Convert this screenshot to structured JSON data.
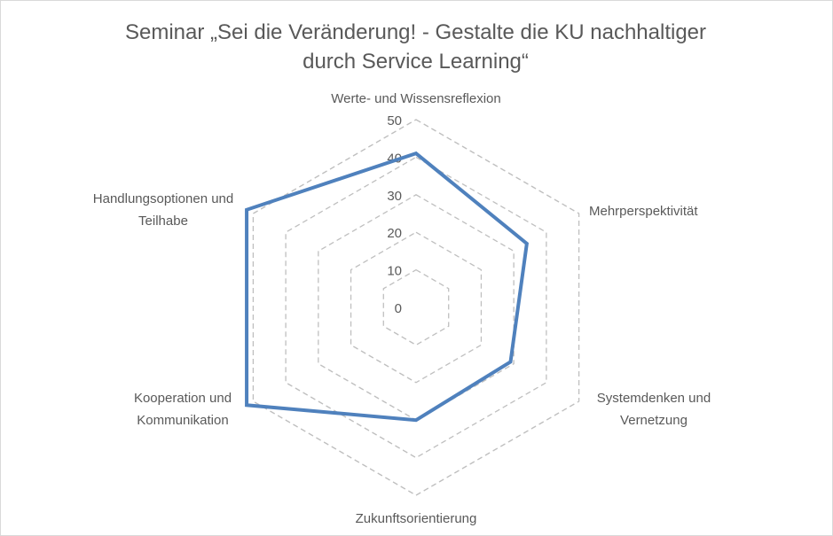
{
  "chart_data": {
    "type": "radar",
    "title_lines": [
      "Seminar „Sei die Veränderung! - Gestalte die KU nachhaltiger",
      "durch Service Learning“"
    ],
    "axes": [
      {
        "label_lines": [
          "Werte- und Wissensreflexion"
        ]
      },
      {
        "label_lines": [
          "Mehrperspektivität"
        ]
      },
      {
        "label_lines": [
          "Systemdenken und",
          "Vernetzung"
        ]
      },
      {
        "label_lines": [
          "Zukunftsorientierung"
        ]
      },
      {
        "label_lines": [
          "Kooperation und",
          "Kommunikation"
        ]
      },
      {
        "label_lines": [
          "Handlungsoptionen und",
          "Teilhabe"
        ]
      }
    ],
    "ticks": [
      "0",
      "10",
      "20",
      "30",
      "40",
      "50"
    ],
    "tick_values": [
      0,
      10,
      20,
      30,
      40,
      50
    ],
    "range": [
      0,
      50
    ],
    "series": [
      {
        "values": [
          41,
          34,
          29,
          30,
          52,
          52
        ]
      }
    ],
    "gridlines": "dashed",
    "legend": "none",
    "colors": {
      "series": "#4f81bd",
      "grid": "#bfbfbf",
      "text": "#595959"
    }
  }
}
